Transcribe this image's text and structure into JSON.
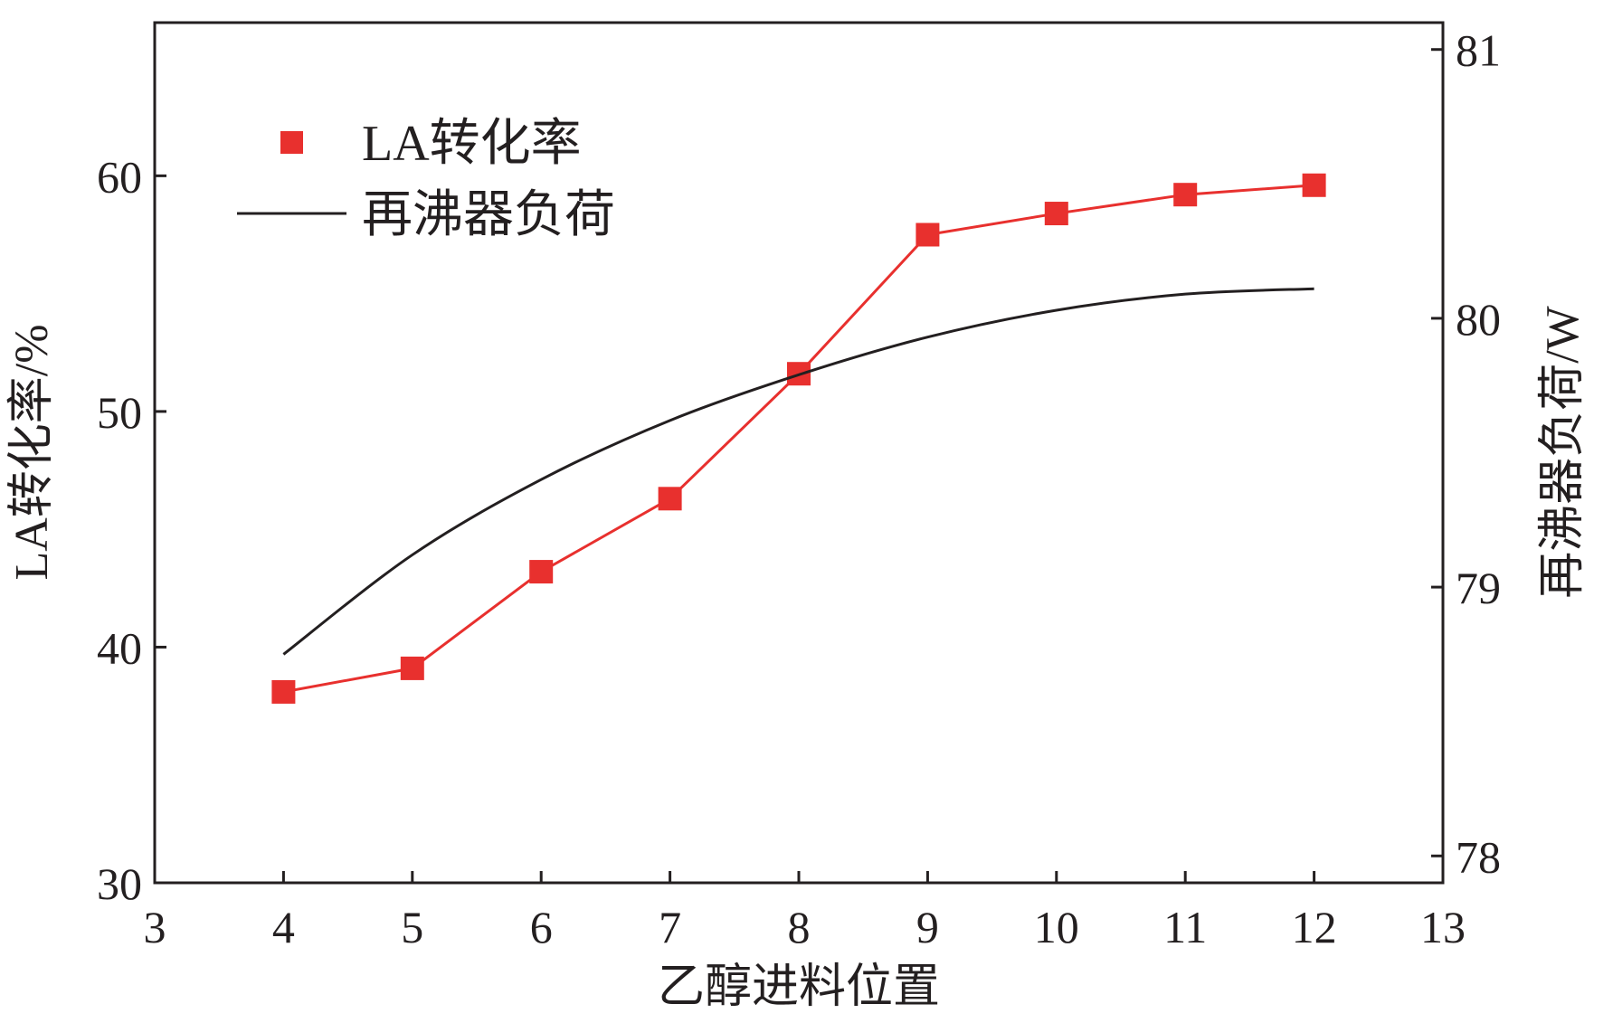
{
  "chart_data": {
    "type": "line",
    "title": "",
    "xlabel": "乙醇进料位置",
    "ylabel_left": "LA转化率/%",
    "ylabel_right": "再沸器负荷/W",
    "xlim": [
      3,
      13
    ],
    "ylim_left": [
      30,
      66.5
    ],
    "ylim_right": [
      77.9,
      81.1
    ],
    "x_ticks": [
      3,
      4,
      5,
      6,
      7,
      8,
      9,
      10,
      11,
      12,
      13
    ],
    "y_left_ticks": [
      30,
      40,
      50,
      60
    ],
    "y_right_ticks": [
      78,
      79,
      80,
      81
    ],
    "grid": false,
    "legend_placement": "top-left",
    "series": [
      {
        "name": "LA转化率",
        "axis": "left",
        "marker": "square",
        "color": "#e8302e",
        "x": [
          4,
          5,
          6,
          7,
          8,
          9,
          10,
          11,
          12
        ],
        "y": [
          38.1,
          39.1,
          43.2,
          46.3,
          51.6,
          57.5,
          58.4,
          59.2,
          59.6
        ]
      },
      {
        "name": "再沸器负荷",
        "axis": "right",
        "marker": "none",
        "color": "#231f20",
        "x": [
          4,
          5,
          6,
          7,
          8,
          9,
          10,
          11,
          12
        ],
        "y": [
          78.75,
          79.12,
          79.4,
          79.62,
          79.79,
          79.93,
          80.03,
          80.09,
          80.11
        ]
      }
    ]
  }
}
